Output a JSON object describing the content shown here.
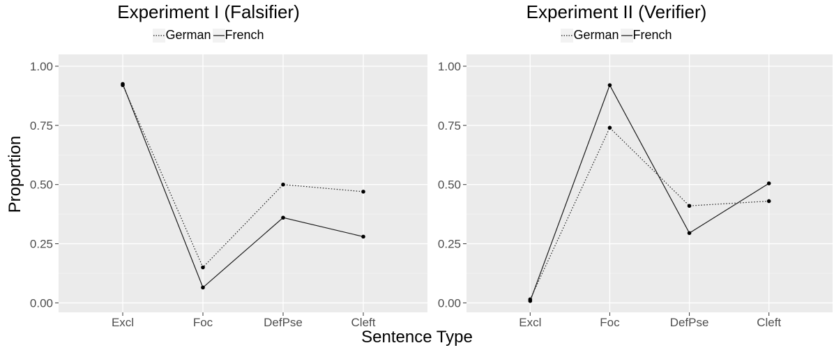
{
  "chart_data": [
    {
      "type": "line",
      "title": "Experiment I (Falsifier)",
      "categories": [
        "Excl",
        "Foc",
        "DefPse",
        "Cleft"
      ],
      "series": [
        {
          "name": "German",
          "values": [
            0.92,
            0.15,
            0.5,
            0.47
          ],
          "style": "dotted"
        },
        {
          "name": "French",
          "values": [
            0.925,
            0.065,
            0.36,
            0.28
          ],
          "style": "solid"
        }
      ],
      "ylim": [
        -0.04,
        1.05
      ],
      "yticks": [
        "0.00",
        "0.25",
        "0.50",
        "0.75",
        "1.00"
      ],
      "grid": true,
      "legend": "top-center"
    },
    {
      "type": "line",
      "title": "Experiment II (Verifier)",
      "categories": [
        "Excl",
        "Foc",
        "DefPse",
        "Cleft"
      ],
      "series": [
        {
          "name": "German",
          "values": [
            0.015,
            0.74,
            0.41,
            0.43
          ],
          "style": "dotted"
        },
        {
          "name": "French",
          "values": [
            0.008,
            0.92,
            0.295,
            0.505
          ],
          "style": "solid"
        }
      ],
      "ylim": [
        -0.04,
        1.05
      ],
      "yticks": [
        "0.00",
        "0.25",
        "0.50",
        "0.75",
        "1.00"
      ],
      "grid": true,
      "legend": "top-center"
    }
  ],
  "axes": {
    "xlabel": "Sentence Type",
    "ylabel": "Proportion"
  },
  "colors": {
    "panel_bg": "#ebebeb",
    "grid_major": "#ffffff",
    "line": "#1a1a1a",
    "text": "#4d4d4d"
  }
}
